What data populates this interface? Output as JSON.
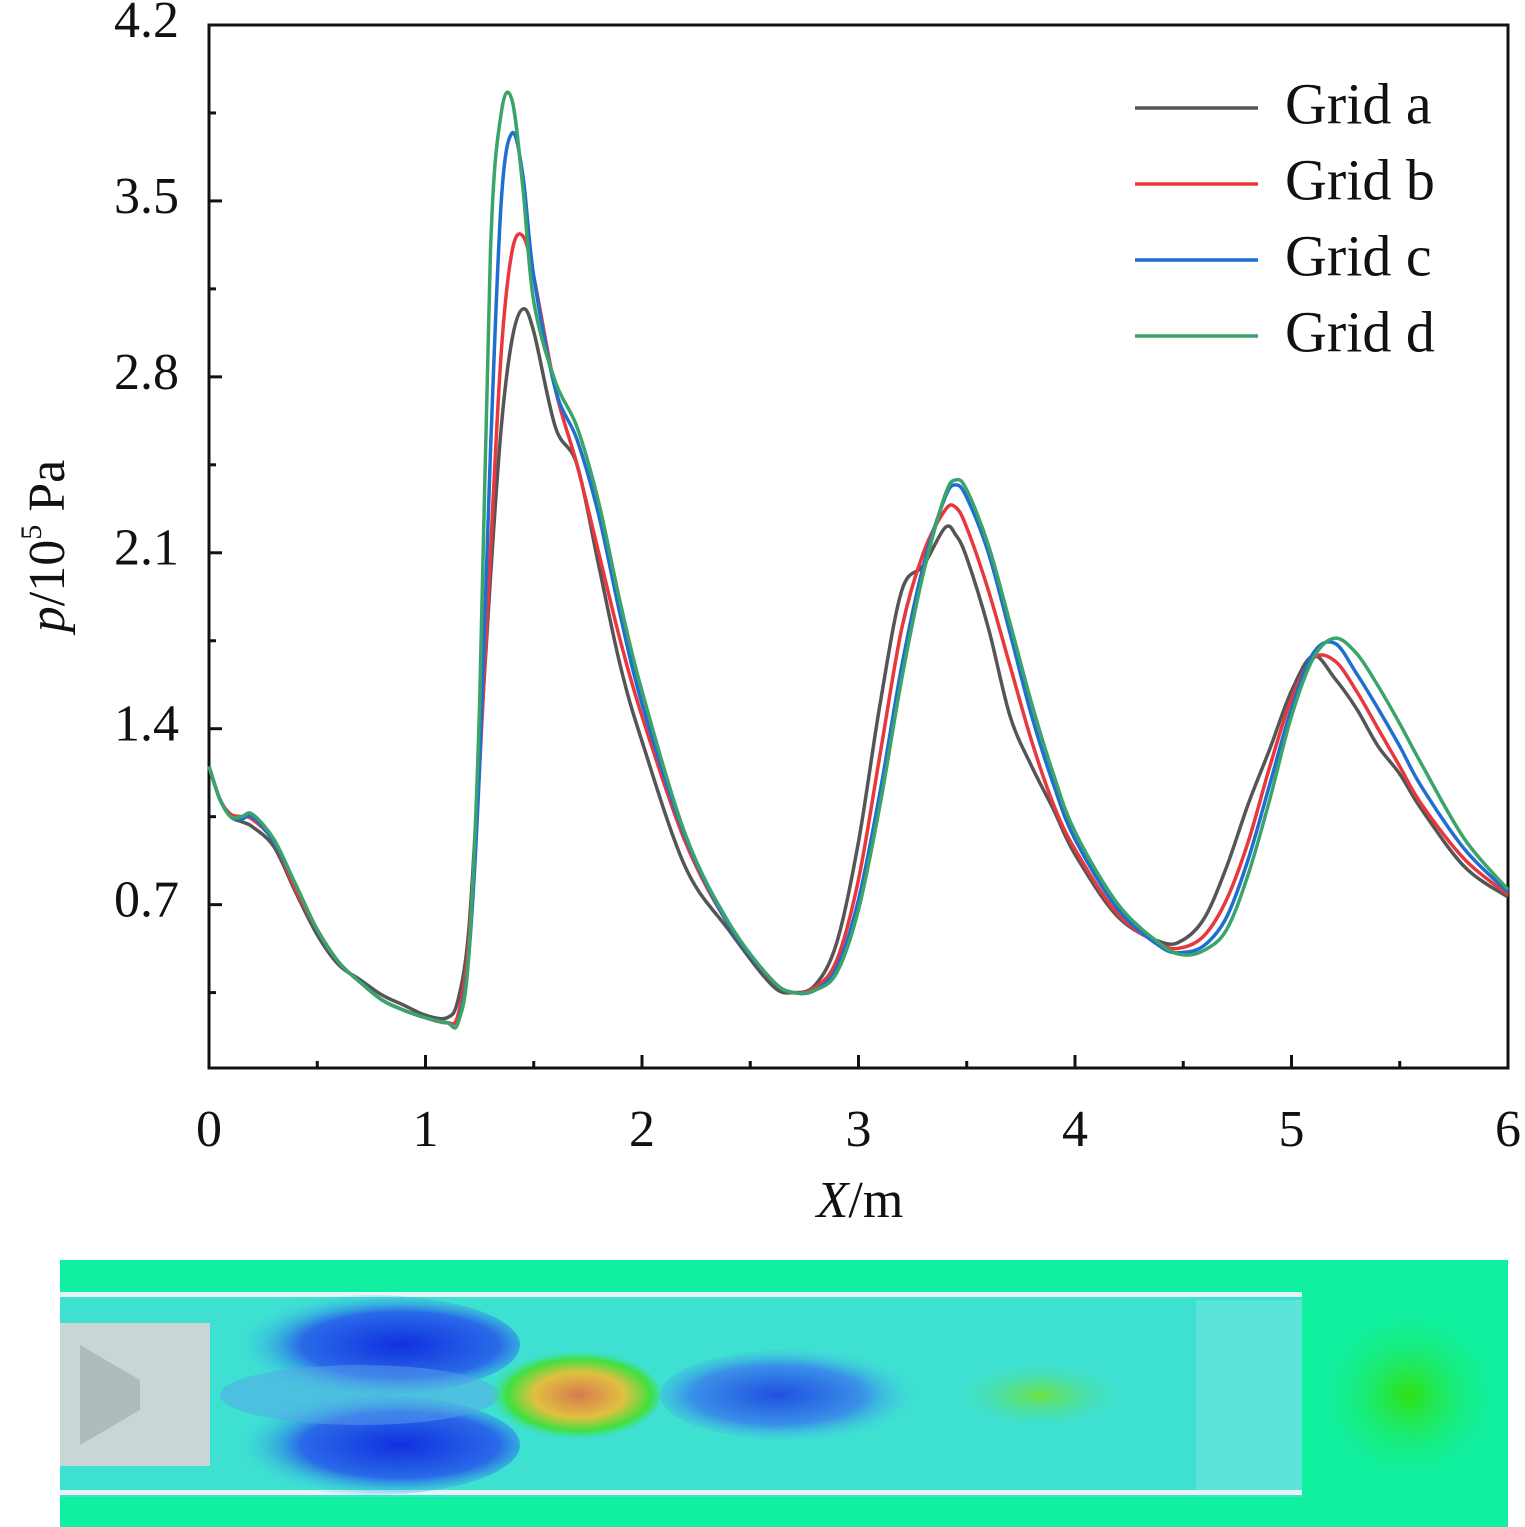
{
  "chart_data": {
    "type": "line",
    "xlabel": [
      "X",
      "/m"
    ],
    "ylabel": [
      "p",
      "/10",
      "5",
      " Pa"
    ],
    "xlim": [
      0,
      6
    ],
    "ylim": [
      0.05,
      4.2
    ],
    "xticks": [
      0,
      1,
      2,
      3,
      4,
      5,
      6
    ],
    "yticks": [
      0.7,
      1.4,
      2.1,
      2.8,
      3.5,
      4.2
    ],
    "minor_ticks": true,
    "legend": "upper right",
    "x": [
      0,
      0.05,
      0.1,
      0.15,
      0.2,
      0.3,
      0.4,
      0.5,
      0.6,
      0.7,
      0.8,
      0.9,
      1.0,
      1.1,
      1.15,
      1.2,
      1.25,
      1.3,
      1.35,
      1.4,
      1.45,
      1.5,
      1.6,
      1.7,
      1.8,
      1.9,
      2.0,
      2.2,
      2.4,
      2.6,
      2.7,
      2.8,
      2.9,
      3.0,
      3.1,
      3.2,
      3.3,
      3.4,
      3.45,
      3.5,
      3.6,
      3.7,
      3.8,
      3.9,
      4.0,
      4.2,
      4.4,
      4.5,
      4.6,
      4.7,
      4.8,
      4.9,
      5.0,
      5.1,
      5.2,
      5.3,
      5.4,
      5.5,
      5.6,
      5.8,
      6.0
    ],
    "series": [
      {
        "name": "Grid a",
        "color": "#555555",
        "values": [
          1.25,
          1.12,
          1.05,
          1.03,
          1.01,
          0.93,
          0.75,
          0.58,
          0.46,
          0.4,
          0.34,
          0.3,
          0.26,
          0.25,
          0.32,
          0.6,
          1.3,
          2.0,
          2.6,
          2.95,
          3.07,
          2.98,
          2.6,
          2.45,
          2.05,
          1.65,
          1.35,
          0.85,
          0.6,
          0.38,
          0.35,
          0.38,
          0.55,
          0.95,
          1.5,
          1.95,
          2.05,
          2.2,
          2.17,
          2.08,
          1.8,
          1.45,
          1.25,
          1.08,
          0.9,
          0.65,
          0.55,
          0.56,
          0.65,
          0.85,
          1.1,
          1.32,
          1.55,
          1.69,
          1.6,
          1.48,
          1.33,
          1.22,
          1.08,
          0.85,
          0.73
        ]
      },
      {
        "name": "Grid b",
        "color": "#e8383d",
        "values": [
          1.25,
          1.12,
          1.06,
          1.05,
          1.04,
          0.95,
          0.76,
          0.6,
          0.47,
          0.39,
          0.32,
          0.28,
          0.25,
          0.23,
          0.26,
          0.55,
          1.25,
          2.1,
          2.9,
          3.3,
          3.36,
          3.2,
          2.75,
          2.45,
          2.1,
          1.75,
          1.45,
          0.95,
          0.62,
          0.4,
          0.35,
          0.37,
          0.48,
          0.8,
          1.3,
          1.8,
          2.1,
          2.27,
          2.28,
          2.2,
          1.95,
          1.65,
          1.35,
          1.1,
          0.92,
          0.66,
          0.54,
          0.53,
          0.58,
          0.72,
          0.95,
          1.25,
          1.52,
          1.68,
          1.67,
          1.55,
          1.4,
          1.25,
          1.1,
          0.88,
          0.74
        ]
      },
      {
        "name": "Grid c",
        "color": "#1f6fd1",
        "values": [
          1.25,
          1.12,
          1.05,
          1.04,
          1.05,
          0.95,
          0.78,
          0.6,
          0.47,
          0.39,
          0.32,
          0.28,
          0.25,
          0.23,
          0.23,
          0.5,
          1.25,
          2.5,
          3.5,
          3.77,
          3.6,
          3.2,
          2.75,
          2.55,
          2.25,
          1.85,
          1.5,
          0.97,
          0.62,
          0.4,
          0.35,
          0.36,
          0.45,
          0.72,
          1.15,
          1.65,
          2.05,
          2.32,
          2.37,
          2.32,
          2.1,
          1.78,
          1.45,
          1.18,
          0.96,
          0.68,
          0.53,
          0.51,
          0.54,
          0.65,
          0.88,
          1.18,
          1.48,
          1.7,
          1.74,
          1.62,
          1.48,
          1.33,
          1.17,
          0.92,
          0.75
        ]
      },
      {
        "name": "Grid d",
        "color": "#3aa46a",
        "values": [
          1.25,
          1.12,
          1.05,
          1.05,
          1.06,
          0.96,
          0.78,
          0.6,
          0.47,
          0.39,
          0.32,
          0.28,
          0.25,
          0.23,
          0.23,
          0.5,
          1.5,
          3.3,
          3.85,
          3.9,
          3.55,
          3.1,
          2.78,
          2.6,
          2.3,
          1.9,
          1.55,
          0.98,
          0.63,
          0.4,
          0.35,
          0.36,
          0.43,
          0.68,
          1.1,
          1.6,
          2.02,
          2.33,
          2.39,
          2.35,
          2.13,
          1.82,
          1.5,
          1.22,
          0.99,
          0.7,
          0.54,
          0.5,
          0.52,
          0.6,
          0.82,
          1.12,
          1.45,
          1.68,
          1.76,
          1.7,
          1.57,
          1.42,
          1.26,
          0.96,
          0.76
        ]
      }
    ]
  }
}
